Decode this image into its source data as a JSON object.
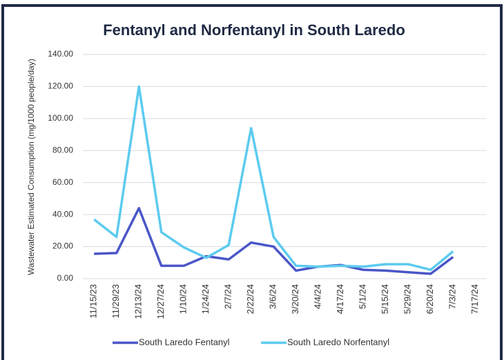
{
  "chart_data": {
    "type": "line",
    "title": "Fentanyl and Norfentanyl in South Laredo",
    "y_label": "Wastewater Estimated Consumption (mg/1000 people/day)",
    "categories": [
      "11/15/23",
      "11/29/23",
      "12/13/24",
      "12/27/24",
      "1/10/24",
      "1/24/24",
      "2/7/24",
      "2/22/24",
      "3/6/24",
      "3/20/24",
      "4/4/24",
      "4/17/24",
      "5/1/24",
      "5/15/24",
      "5/29/24",
      "6/20/24",
      "7/3/24",
      "7/17/24"
    ],
    "series": [
      {
        "name": "South Laredo Fentanyl",
        "color": "#4a56c8",
        "values": [
          15.5,
          16,
          44,
          8,
          8,
          14,
          12,
          22.5,
          20,
          5,
          7.5,
          8.5,
          5.5,
          5,
          4,
          3,
          13.5,
          null
        ]
      },
      {
        "name": "South Laredo Norfentanyl",
        "color": "#5ccbef",
        "values": [
          37,
          26,
          120,
          29,
          19.5,
          13,
          21,
          94,
          26,
          8,
          7.5,
          8,
          7.5,
          9,
          9,
          5.5,
          17,
          null
        ]
      }
    ],
    "ylim": [
      0,
      140
    ],
    "yticks": [
      {
        "value": 0,
        "label": "0.00"
      },
      {
        "value": 20,
        "label": "20.00"
      },
      {
        "value": 40,
        "label": "40.00"
      },
      {
        "value": 60,
        "label": "60.00"
      },
      {
        "value": 80,
        "label": "80.00"
      },
      {
        "value": 100,
        "label": "100.00"
      },
      {
        "value": 120,
        "label": "120.00"
      },
      {
        "value": 140,
        "label": "140.00"
      }
    ],
    "grid": true,
    "legend": "bottom"
  }
}
